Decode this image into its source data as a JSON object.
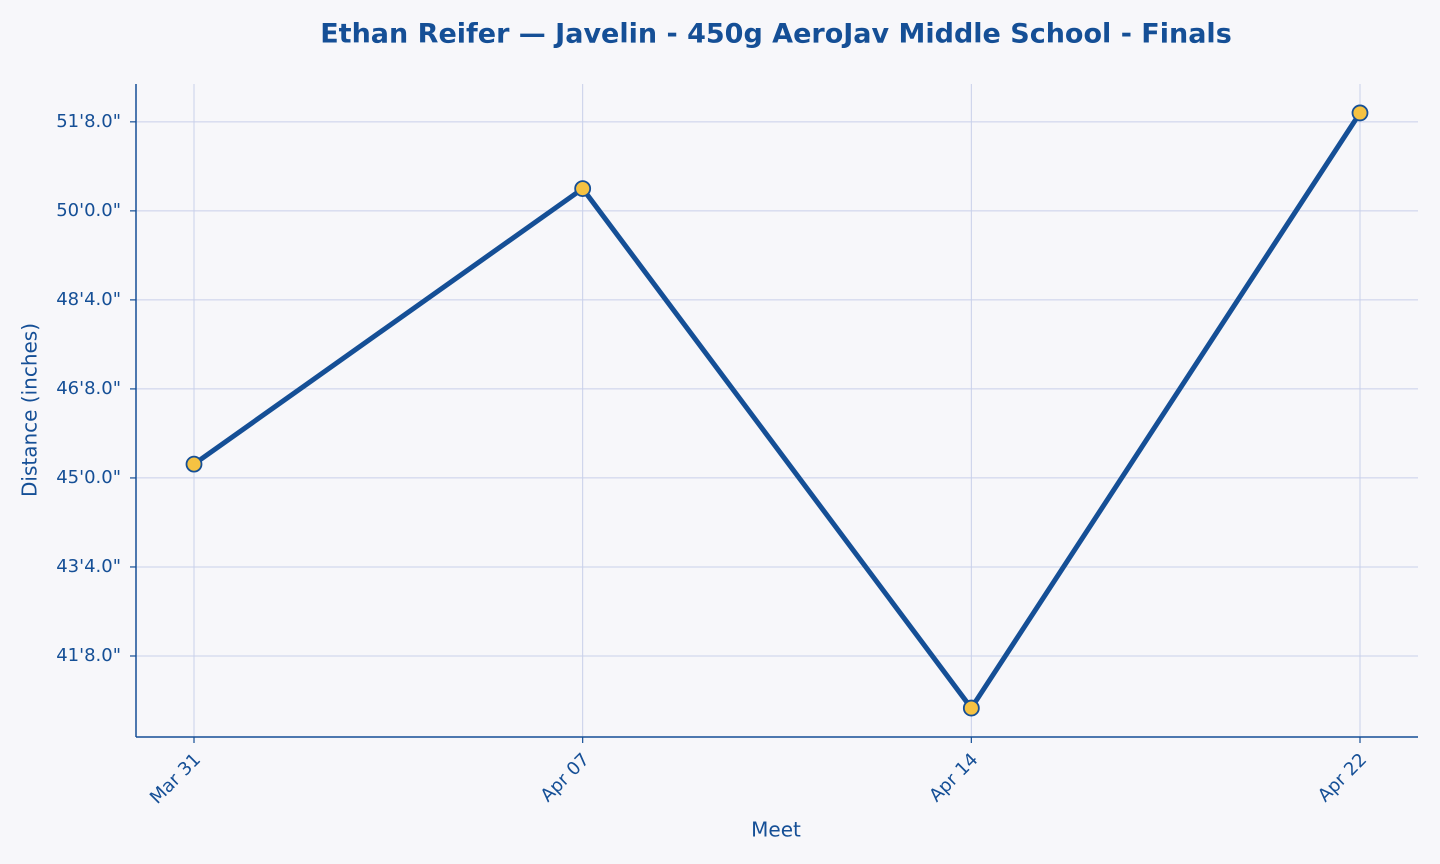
{
  "chart_data": {
    "type": "line",
    "title": "Ethan Reifer — Javelin - 450g AeroJav Middle School - Finals",
    "x_label": "Meet",
    "y_label": "Distance (inches)",
    "categories": [
      "Mar 31",
      "Apr 07",
      "Apr 14",
      "Apr 22"
    ],
    "series": [
      {
        "name": "Distance",
        "color": "#154f96",
        "marker_color": "#f5c242",
        "values": [
          543.1,
          605,
          488.3,
          622
        ]
      }
    ],
    "ylim": [
      481.8,
      628.5
    ],
    "yticks": [
      {
        "value": 500,
        "label": "41'8.0\""
      },
      {
        "value": 520,
        "label": "43'4.0\""
      },
      {
        "value": 540,
        "label": "45'0.0\""
      },
      {
        "value": 560,
        "label": "46'8.0\""
      },
      {
        "value": 580,
        "label": "48'4.0\""
      },
      {
        "value": 600,
        "label": "50'0.0\""
      },
      {
        "value": 620,
        "label": "51'8.0\""
      }
    ],
    "grid": true
  }
}
